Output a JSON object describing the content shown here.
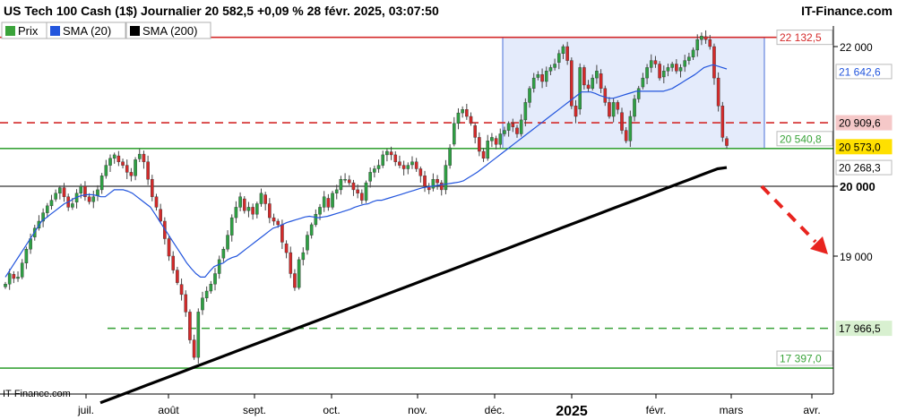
{
  "header": {
    "title": "US Tech 100 Cash (1$) Journalier 20 582,5 +0,09 % 28 févr. 2025, 03:07:50",
    "brand": "IT-Finance.com"
  },
  "legend": {
    "items": [
      {
        "label": "Prix",
        "color": "#3aa33a"
      },
      {
        "label": "SMA (20)",
        "color": "#2255dd"
      },
      {
        "label": "SMA (200)",
        "color": "#000000"
      }
    ]
  },
  "watermark": "IT-Finance.com",
  "chart_data": {
    "type": "candlestick",
    "y_axis": {
      "position": "right",
      "ticks": [
        {
          "value": 22000,
          "label": "22 000",
          "bold": false
        },
        {
          "value": 20000,
          "label": "20 000",
          "bold": true
        },
        {
          "value": 19000,
          "label": "19 000",
          "bold": false
        }
      ]
    },
    "x_axis": {
      "labels": [
        {
          "label": "juil.",
          "bold": false
        },
        {
          "label": "août",
          "bold": false
        },
        {
          "label": "sept.",
          "bold": false
        },
        {
          "label": "oct.",
          "bold": false
        },
        {
          "label": "nov.",
          "bold": false
        },
        {
          "label": "déc.",
          "bold": false
        },
        {
          "label": "2025",
          "bold": true
        },
        {
          "label": "févr.",
          "bold": false
        },
        {
          "label": "mars",
          "bold": false
        },
        {
          "label": "avr.",
          "bold": false
        }
      ]
    },
    "levels": [
      {
        "value": 22132.5,
        "label": "22 132,5",
        "style": "solid",
        "color": "#d42a2a",
        "tag_fill": "#ffffff",
        "tag_text": "#d42a2a"
      },
      {
        "value": 21642.6,
        "label": "21 642,6",
        "style": "none",
        "color": "#2255dd",
        "tag_fill": "#ffffff",
        "tag_text": "#2255dd"
      },
      {
        "value": 20909.6,
        "label": "20 909,6",
        "style": "dashed",
        "color": "#d42a2a",
        "tag_fill": "#f5c8c8",
        "tag_text": "#000000"
      },
      {
        "value": 20540.8,
        "label": "20 540,8",
        "style": "solid",
        "color": "#3aa33a",
        "tag_fill": "#ffffff",
        "tag_text": "#3aa33a"
      },
      {
        "value": 20573.0,
        "label": "20 573,0",
        "style": "none",
        "color": "#e0c000",
        "tag_fill": "#ffe000",
        "tag_text": "#000000"
      },
      {
        "value": 20268.3,
        "label": "20 268,3",
        "style": "none",
        "color": "#000000",
        "tag_fill": "#ffffff",
        "tag_text": "#000000"
      },
      {
        "value": 20000,
        "label": "",
        "style": "solid",
        "color": "#000000",
        "tag_fill": "none",
        "tag_text": "#000000"
      },
      {
        "value": 17966.5,
        "label": "17 966,5",
        "style": "dashed",
        "color": "#3aa33a",
        "tag_fill": "#d8f0d0",
        "tag_text": "#000000"
      },
      {
        "value": 17397.0,
        "label": "17 397,0",
        "style": "solid",
        "color": "#3aa33a",
        "tag_fill": "#ffffff",
        "tag_text": "#3aa33a"
      }
    ],
    "range_box": {
      "x_from": "déc.",
      "x_to": "mars",
      "y_low": 20540.8,
      "y_high": 22132.5
    },
    "forecast_arrow": {
      "direction": "down",
      "style": "dashed",
      "color": "#e8241f"
    },
    "series": [
      {
        "name": "Prix",
        "kind": "candles",
        "closes": [
          18600,
          18750,
          18680,
          18700,
          18900,
          19100,
          19250,
          19400,
          19500,
          19620,
          19720,
          19800,
          19900,
          19980,
          19850,
          19700,
          19750,
          19900,
          20000,
          19850,
          19780,
          19850,
          19950,
          20150,
          20300,
          20400,
          20450,
          20350,
          20300,
          20200,
          20150,
          20380,
          20460,
          20350,
          20100,
          19850,
          19700,
          19500,
          19250,
          19000,
          18800,
          18620,
          18450,
          18200,
          17800,
          17550,
          18200,
          18400,
          18500,
          18600,
          18750,
          18950,
          19100,
          19300,
          19550,
          19700,
          19850,
          19650,
          19700,
          19600,
          19750,
          19900,
          19750,
          19550,
          19500,
          19450,
          19200,
          19050,
          18750,
          18550,
          18950,
          19050,
          19300,
          19450,
          19600,
          19700,
          19850,
          19700,
          19900,
          19950,
          20100,
          20100,
          20050,
          19950,
          19900,
          19800,
          20050,
          20200,
          20250,
          20300,
          20450,
          20500,
          20450,
          20350,
          20300,
          20250,
          20300,
          20350,
          20250,
          20150,
          20000,
          19950,
          20100,
          20050,
          19950,
          20300,
          20550,
          20900,
          21050,
          21100,
          21000,
          20900,
          20700,
          20500,
          20400,
          20650,
          20700,
          20600,
          20750,
          20800,
          20900,
          20850,
          20750,
          20950,
          21200,
          21400,
          21550,
          21600,
          21500,
          21650,
          21700,
          21750,
          21900,
          22000,
          21800,
          21150,
          21000,
          21700,
          21450,
          21400,
          21550,
          21650,
          21400,
          21200,
          21000,
          21200,
          21100,
          20800,
          20650,
          21000,
          21250,
          21400,
          21550,
          21700,
          21800,
          21750,
          21550,
          21650,
          21700,
          21750,
          21650,
          21700,
          21800,
          21850,
          21950,
          22100,
          22150,
          22100,
          22000,
          21550,
          21150,
          20700,
          20582.5
        ]
      },
      {
        "name": "SMA (20)",
        "kind": "line",
        "values": [
          18700,
          18800,
          18900,
          19000,
          19100,
          19200,
          19300,
          19400,
          19500,
          19550,
          19600,
          19650,
          19700,
          19750,
          19780,
          19820,
          19850,
          19870,
          19880,
          19880,
          19870,
          19850,
          19850,
          19900,
          19950,
          19950,
          19950,
          19930,
          19900,
          19850,
          19800,
          19750,
          19700,
          19600,
          19500,
          19400,
          19300,
          19200,
          19100,
          19000,
          18900,
          18820,
          18750,
          18700,
          18700,
          18780,
          18850,
          18880,
          18900,
          18950,
          18980,
          19000,
          19050,
          19100,
          19150,
          19200,
          19250,
          19300,
          19350,
          19400,
          19420,
          19450,
          19480,
          19500,
          19520,
          19540,
          19560,
          19570,
          19560,
          19550,
          19560,
          19570,
          19590,
          19610,
          19630,
          19650,
          19670,
          19700,
          19720,
          19740,
          19750,
          19780,
          19800,
          19800,
          19820,
          19840,
          19860,
          19880,
          19900,
          19920,
          19940,
          19960,
          19980,
          19990,
          20000,
          20010,
          20020,
          20030,
          20040,
          20050,
          20060,
          20080,
          20120,
          20160,
          20200,
          20250,
          20300,
          20350,
          20400,
          20450,
          20500,
          20550,
          20600,
          20650,
          20700,
          20750,
          20800,
          20850,
          20900,
          20950,
          21000,
          21050,
          21100,
          21150,
          21200,
          21250,
          21300,
          21350,
          21350,
          21350,
          21330,
          21300,
          21280,
          21260,
          21260,
          21280,
          21300,
          21320,
          21340,
          21360,
          21360,
          21360,
          21360,
          21360,
          21360,
          21360,
          21380,
          21400,
          21440,
          21480,
          21520,
          21560,
          21600,
          21650,
          21700,
          21720,
          21740,
          21720,
          21700,
          21680
        ]
      },
      {
        "name": "SMA (200)",
        "kind": "line",
        "values": [
          16900,
          16950,
          17000,
          17050,
          17100,
          17150,
          17200,
          17250,
          17300,
          17350,
          17400,
          17450,
          17500,
          17550,
          17600,
          17650,
          17700,
          17750,
          17800,
          17850,
          17900,
          17950,
          18000,
          18050,
          18100,
          18150,
          18200,
          18250,
          18300,
          18350,
          18400,
          18450,
          18500,
          18550,
          18600,
          18650,
          18700,
          18750,
          18800,
          18850,
          18900,
          18950,
          19000,
          19050,
          19100,
          19150,
          19200,
          19250,
          19300,
          19350,
          19400,
          19450,
          19500,
          19550,
          19600,
          19650,
          19700,
          19750,
          19800,
          19850,
          19900,
          19950,
          20000,
          20050,
          20100,
          20150,
          20200,
          20250,
          20268.3
        ]
      }
    ]
  }
}
